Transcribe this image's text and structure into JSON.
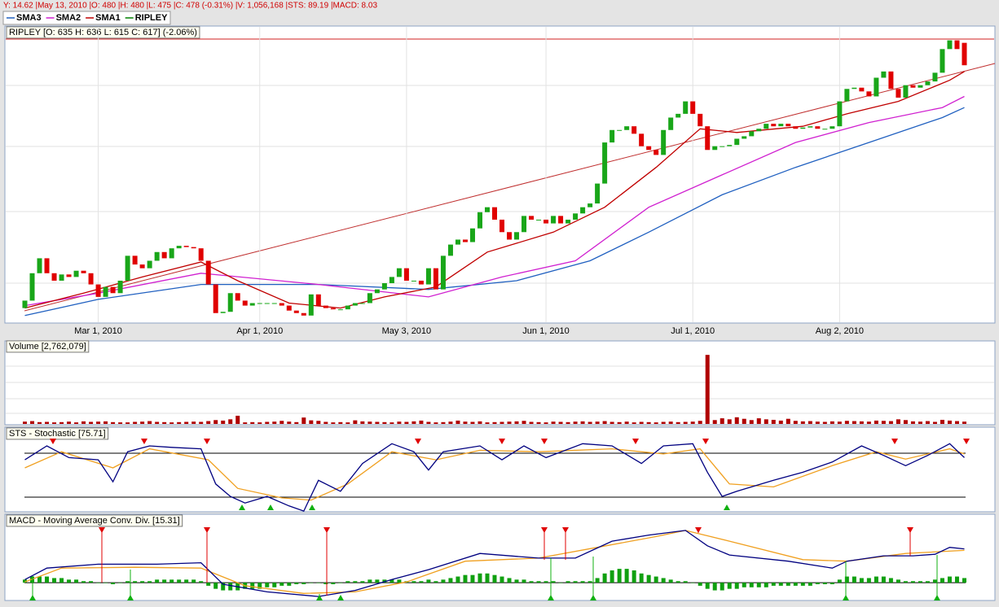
{
  "header": {
    "status": "Y: 14.62 |May 13, 2010 |O: 480 |H: 480 |L: 475 |C: 478 (-0.31%) |V: 1,056,168 |STS: 89.19 |MACD: 8.03"
  },
  "chart_data": [
    {
      "type": "candlestick",
      "title": "RIPLEY [O: 635  H: 636  L: 615  C: 617]  (-2.06%)",
      "name": "RIPLEY",
      "color": "#008000",
      "up_color": "#19a619",
      "down_color": "#e00000",
      "open": [
        422,
        428,
        450,
        462,
        450,
        444,
        449,
        447,
        452,
        450,
        441,
        431,
        439,
        434,
        444,
        464,
        457,
        454,
        460,
        467,
        462,
        470,
        472,
        471,
        470,
        460,
        441,
        418,
        419,
        434,
        428,
        424,
        426,
        426,
        426,
        426,
        424,
        420,
        418,
        416,
        433,
        424,
        422,
        421,
        421,
        424,
        426,
        426,
        434,
        437,
        442,
        447,
        454,
        444,
        444,
        441,
        454,
        437,
        464,
        473,
        477,
        475,
        486,
        499,
        503,
        493,
        483,
        477,
        483,
        496,
        493,
        493,
        490,
        496,
        490,
        493,
        498,
        503,
        506,
        522,
        555,
        565,
        565,
        568,
        562,
        552,
        549,
        545,
        565,
        575,
        578,
        588,
        578,
        568,
        549,
        552,
        552,
        553,
        558,
        560,
        564,
        566,
        570,
        568,
        570,
        568,
        566,
        567,
        568,
        566,
        566,
        568,
        588,
        598,
        599,
        596,
        592,
        607,
        612,
        598,
        591,
        601,
        599,
        601,
        604,
        611,
        630,
        637,
        635
      ],
      "close": [
        428,
        450,
        462,
        450,
        444,
        449,
        447,
        452,
        450,
        441,
        431,
        439,
        434,
        444,
        464,
        457,
        454,
        460,
        467,
        462,
        470,
        472,
        471,
        470,
        460,
        441,
        418,
        419,
        434,
        428,
        424,
        426,
        426,
        426,
        426,
        424,
        420,
        418,
        416,
        433,
        424,
        422,
        421,
        421,
        424,
        426,
        426,
        434,
        437,
        442,
        447,
        454,
        444,
        444,
        441,
        454,
        437,
        464,
        473,
        477,
        475,
        486,
        499,
        503,
        493,
        483,
        477,
        483,
        496,
        493,
        493,
        490,
        496,
        490,
        493,
        498,
        503,
        506,
        522,
        555,
        565,
        565,
        568,
        562,
        552,
        549,
        545,
        565,
        575,
        578,
        588,
        578,
        568,
        549,
        552,
        552,
        553,
        558,
        560,
        564,
        566,
        570,
        568,
        570,
        568,
        566,
        567,
        568,
        566,
        566,
        568,
        588,
        598,
        599,
        596,
        592,
        607,
        612,
        598,
        591,
        601,
        599,
        601,
        604,
        611,
        630,
        637,
        630,
        617
      ],
      "xticks": [
        {
          "value": 10,
          "label": "Mar 1, 2010"
        },
        {
          "value": 32,
          "label": "Apr 1, 2010"
        },
        {
          "value": 52,
          "label": "May 3, 2010"
        },
        {
          "value": 71,
          "label": "Jun 1, 2010"
        },
        {
          "value": 91,
          "label": "Jul 1, 2010"
        },
        {
          "value": 111,
          "label": "Aug 2, 2010"
        }
      ],
      "ylim": [
        410,
        640
      ],
      "series": [
        {
          "name": "SMA3",
          "color": "#2060c0",
          "x": [
            0,
            10,
            24,
            40,
            55,
            67,
            77,
            85,
            95,
            105,
            115,
            125,
            128
          ],
          "values": [
            416,
            429,
            441,
            441,
            437,
            444,
            460,
            483,
            513,
            535,
            555,
            575,
            583
          ]
        },
        {
          "name": "SMA2",
          "color": "#d020d0",
          "x": [
            0,
            10,
            24,
            40,
            55,
            65,
            75,
            85,
            95,
            105,
            115,
            125,
            128
          ],
          "values": [
            424,
            434,
            450,
            441,
            431,
            447,
            460,
            503,
            529,
            555,
            571,
            583,
            592
          ]
        },
        {
          "name": "SMA1",
          "color": "#c00000",
          "x": [
            0,
            8,
            16,
            24,
            29,
            36,
            43,
            49,
            56,
            63,
            72,
            79,
            86,
            92,
            97,
            106,
            112,
            119,
            126,
            128
          ],
          "values": [
            422,
            434,
            447,
            459,
            444,
            426,
            422,
            431,
            439,
            467,
            483,
            503,
            535,
            566,
            563,
            568,
            578,
            588,
            605,
            612
          ]
        }
      ]
    },
    {
      "type": "bar",
      "title": "Volume [2,762,079]",
      "color": "#b00000",
      "ylim": [
        0,
        2800000
      ],
      "values": [
        90000,
        110000,
        70000,
        80000,
        60000,
        70000,
        90000,
        60000,
        100000,
        80000,
        90000,
        100000,
        70000,
        60000,
        60000,
        80000,
        90000,
        110000,
        80000,
        70000,
        60000,
        70000,
        80000,
        90000,
        80000,
        110000,
        150000,
        130000,
        180000,
        320000,
        60000,
        70000,
        60000,
        80000,
        90000,
        120000,
        90000,
        70000,
        250000,
        140000,
        120000,
        80000,
        60000,
        70000,
        60000,
        140000,
        100000,
        90000,
        80000,
        70000,
        60000,
        90000,
        80000,
        100000,
        130000,
        80000,
        60000,
        70000,
        90000,
        130000,
        90000,
        80000,
        100000,
        60000,
        70000,
        80000,
        90000,
        100000,
        120000,
        80000,
        70000,
        60000,
        90000,
        80000,
        70000,
        90000,
        100000,
        80000,
        90000,
        110000,
        80000,
        70000,
        90000,
        60000,
        80000,
        70000,
        60000,
        80000,
        90000,
        70000,
        80000,
        90000,
        120000,
        2700000,
        150000,
        220000,
        180000,
        260000,
        200000,
        150000,
        220000,
        180000,
        160000,
        130000,
        200000,
        120000,
        100000,
        110000,
        90000,
        80000,
        100000,
        90000,
        120000,
        110000,
        100000,
        90000,
        130000,
        120000,
        110000,
        180000,
        150000,
        100000,
        90000,
        110000,
        80000,
        160000,
        130000,
        110000,
        90000
      ]
    },
    {
      "type": "line",
      "title": "STS - Stochastic [75.71]",
      "ylim": [
        0,
        100
      ],
      "levels": [
        80,
        20
      ],
      "series": [
        {
          "color": "#f0a020",
          "x": [
            0,
            5,
            12,
            17,
            25,
            29,
            35,
            39,
            44,
            50,
            56,
            62,
            70,
            80,
            87,
            92,
            96,
            102,
            110,
            116,
            120,
            126,
            128
          ],
          "values": [
            60,
            82,
            60,
            86,
            71,
            32,
            19,
            16,
            38,
            82,
            71,
            84,
            82,
            86,
            79,
            86,
            38,
            34,
            63,
            82,
            72,
            86,
            79
          ]
        },
        {
          "color": "#000080",
          "x": [
            0,
            3,
            6,
            10,
            12,
            14,
            17,
            20,
            24,
            26,
            28,
            30,
            33,
            36,
            38,
            40,
            43,
            46,
            50,
            53,
            55,
            57,
            62,
            65,
            68,
            71,
            76,
            80,
            84,
            87,
            91,
            93,
            95,
            97,
            102,
            106,
            110,
            114,
            117,
            120,
            123,
            126,
            128
          ],
          "values": [
            71,
            90,
            74,
            71,
            41,
            82,
            90,
            88,
            86,
            38,
            21,
            12,
            21,
            8,
            1,
            43,
            28,
            66,
            93,
            82,
            57,
            82,
            90,
            71,
            90,
            74,
            93,
            90,
            66,
            90,
            93,
            54,
            21,
            28,
            43,
            54,
            68,
            90,
            77,
            63,
            77,
            93,
            74
          ]
        }
      ]
    },
    {
      "type": "macd",
      "title": "MACD - Moving Average Conv. Div. [15.31]",
      "ylim": [
        -10,
        35
      ],
      "histogram": {
        "color": "#10a010",
        "values": [
          2,
          4,
          4,
          4,
          3,
          3,
          2,
          2,
          1,
          1,
          0,
          0,
          -1,
          0,
          1,
          1,
          1,
          1,
          2,
          2,
          2,
          2,
          2,
          2,
          1,
          -2,
          -4,
          -5,
          -5,
          -5,
          -4,
          -4,
          -4,
          -3,
          -3,
          -2,
          -2,
          -1,
          -1,
          0,
          0,
          -1,
          -1,
          0,
          1,
          1,
          1,
          2,
          2,
          2,
          2,
          2,
          1,
          1,
          1,
          2,
          1,
          2,
          3,
          4,
          5,
          5,
          6,
          6,
          5,
          4,
          3,
          2,
          2,
          1,
          1,
          1,
          1,
          0,
          1,
          1,
          1,
          1,
          3,
          6,
          8,
          9,
          9,
          8,
          6,
          5,
          4,
          3,
          2,
          1,
          1,
          0,
          -2,
          -4,
          -5,
          -5,
          -4,
          -4,
          -3,
          -3,
          -3,
          -3,
          -2,
          -2,
          -2,
          -2,
          -2,
          -2,
          -1,
          -1,
          -1,
          2,
          4,
          4,
          3,
          3,
          4,
          4,
          3,
          2,
          1,
          1,
          1,
          1,
          2,
          3,
          4,
          4,
          3
        ]
      },
      "series": [
        {
          "color": "#f0a020",
          "x": [
            0,
            5,
            15,
            24,
            30,
            38,
            45,
            52,
            60,
            70,
            78,
            86,
            90,
            96,
            106,
            112,
            120,
            128
          ],
          "values": [
            0.5,
            9.5,
            10,
            9.5,
            -2,
            -7,
            -6,
            0.5,
            14,
            16,
            23,
            30,
            34,
            27,
            15,
            14,
            19,
            21
          ]
        },
        {
          "color": "#000080",
          "x": [
            0,
            3,
            10,
            18,
            24,
            27,
            33,
            40,
            45,
            50,
            55,
            62,
            70,
            75,
            80,
            85,
            90,
            93,
            96,
            104,
            110,
            112,
            117,
            121,
            124,
            126,
            128
          ],
          "values": [
            2,
            9.5,
            12,
            12,
            13,
            -1,
            -6,
            -9,
            -5,
            2,
            8.5,
            19,
            16,
            16,
            27,
            31,
            34,
            24,
            18,
            14,
            9.5,
            14,
            17.5,
            17.5,
            18.5,
            23,
            22
          ]
        }
      ]
    }
  ]
}
